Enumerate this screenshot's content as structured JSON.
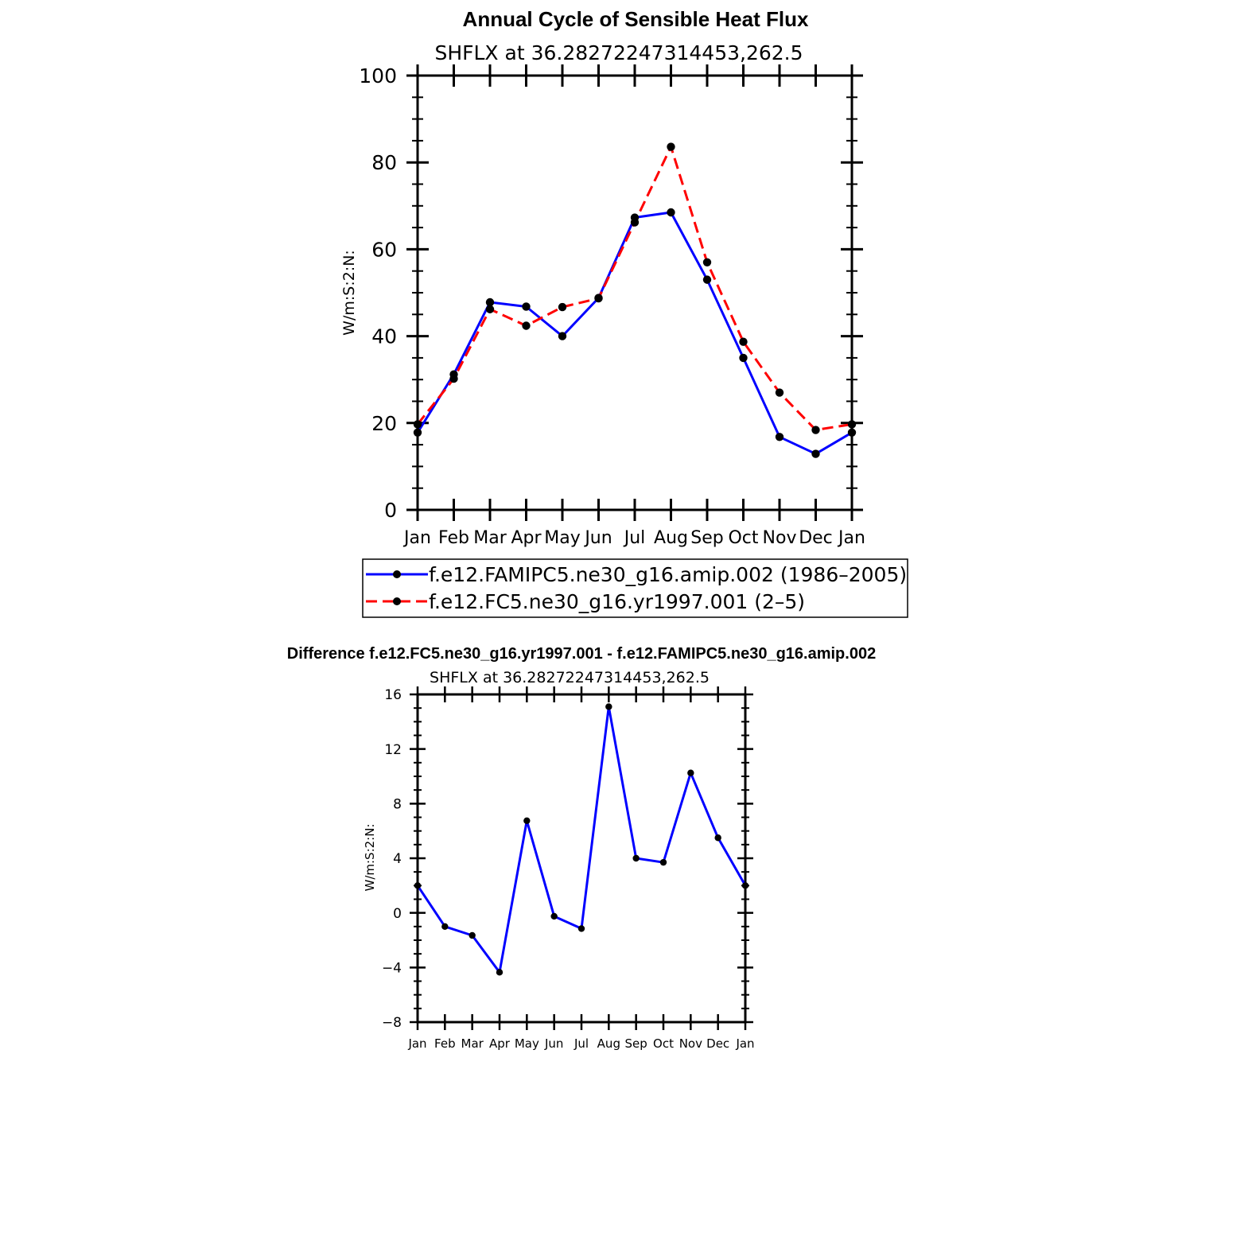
{
  "chart_data": [
    {
      "type": "line",
      "title": "Annual Cycle of Sensible Heat Flux",
      "subtitle": "SHFLX at 36.28272247314453,262.5",
      "ylabel": "W/m:S:2:N:",
      "xlabel": "",
      "categories": [
        "Jan",
        "Feb",
        "Mar",
        "Apr",
        "May",
        "Jun",
        "Jul",
        "Aug",
        "Sep",
        "Oct",
        "Nov",
        "Dec",
        "Jan"
      ],
      "ylim": [
        0,
        100
      ],
      "yticks": [
        "0",
        "20",
        "40",
        "60",
        "80",
        "100"
      ],
      "grid": false,
      "legend_position": "bottom",
      "series": [
        {
          "name": "f.e12.FAMIPC5.ne30_g16.amip.002 (1986–2005)",
          "color": "#0000ff",
          "line_style": "solid",
          "values": [
            17.8,
            31.2,
            47.8,
            46.8,
            40.0,
            48.8,
            67.3,
            68.5,
            53.0,
            35.0,
            16.8,
            12.9,
            17.8
          ]
        },
        {
          "name": "f.e12.FC5.ne30_g16.yr1997.001 (2–5)",
          "color": "#ff0000",
          "line_style": "dashed",
          "values": [
            19.7,
            30.2,
            46.2,
            42.4,
            46.7,
            48.7,
            66.2,
            83.6,
            57.0,
            38.7,
            27.0,
            18.4,
            19.7
          ]
        }
      ]
    },
    {
      "type": "line",
      "title": "Difference f.e12.FC5.ne30_g16.yr1997.001 - f.e12.FAMIPC5.ne30_g16.amip.002",
      "subtitle": "SHFLX at 36.28272247314453,262.5",
      "ylabel": "W/m:S:2:N:",
      "xlabel": "",
      "categories": [
        "Jan",
        "Feb",
        "Mar",
        "Apr",
        "May",
        "Jun",
        "Jul",
        "Aug",
        "Sep",
        "Oct",
        "Nov",
        "Dec",
        "Jan"
      ],
      "ylim": [
        -8,
        16
      ],
      "yticks": [
        "−8",
        "−4",
        "0",
        "4",
        "8",
        "12",
        "16"
      ],
      "grid": false,
      "series": [
        {
          "color": "#0000ff",
          "line_style": "solid",
          "values": [
            2.0,
            -1.0,
            -1.65,
            -4.35,
            6.75,
            -0.25,
            -1.15,
            15.1,
            4.0,
            3.7,
            10.25,
            5.5,
            2.0
          ]
        }
      ]
    }
  ]
}
